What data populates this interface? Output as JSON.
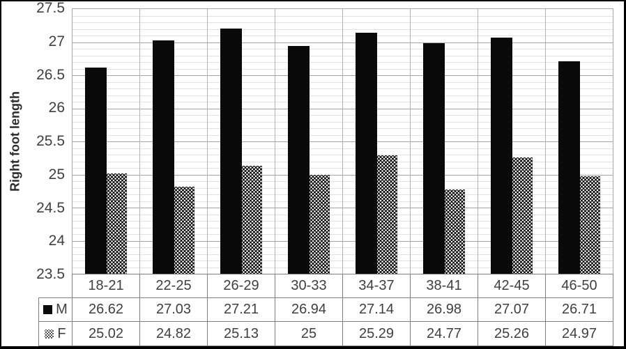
{
  "chart_data": {
    "type": "bar",
    "title": "",
    "xlabel": "",
    "ylabel": "Right foot length",
    "categories": [
      "18-21",
      "22-25",
      "26-29",
      "30-33",
      "34-37",
      "38-41",
      "42-45",
      "46-50"
    ],
    "series": [
      {
        "name": "M",
        "swatch": "solid-black-square",
        "values": [
          26.62,
          27.03,
          27.21,
          26.94,
          27.14,
          26.98,
          27.07,
          26.71
        ]
      },
      {
        "name": "F",
        "swatch": "checkered-square",
        "values": [
          25.02,
          24.82,
          25.13,
          25,
          25.29,
          24.77,
          25.26,
          24.97
        ]
      }
    ],
    "ylim": [
      23.5,
      27.5
    ],
    "y_tick_labels": [
      "27.5",
      "27",
      "26.5",
      "26",
      "25.5",
      "25",
      "24.5",
      "24",
      "23.5"
    ],
    "y_major_tick_interval": 0.5,
    "y_minor_gridline_interval": 0.1,
    "grid": true,
    "legend_position": "data-table-left"
  },
  "colors": {
    "bar_m": "#0a0a0a",
    "bar_f_background": "#0a0a0a",
    "bar_f_dots": "#ffffff",
    "grid_major": "#a3a3a3",
    "grid_minor": "#e1e1e1",
    "plot_border": "#a6a6a6",
    "table_border": "#7f7f7f",
    "text": "#3f3f3f",
    "figure_border": "#000000",
    "background": "#ffffff"
  }
}
